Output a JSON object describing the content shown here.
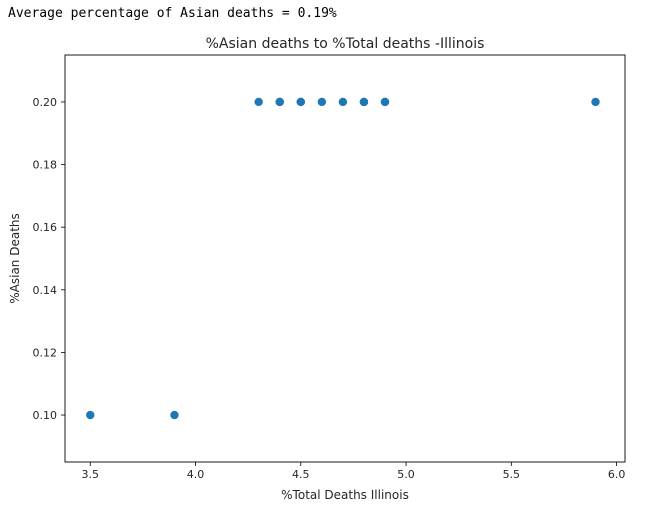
{
  "output_text": "Average percentage of Asian deaths = 0.19%",
  "chart_data": {
    "type": "scatter",
    "title": "%Asian deaths to %Total deaths -Illinois",
    "xlabel": "%Total Deaths Illinois",
    "ylabel": "%Asian Deaths",
    "xlim": [
      3.38,
      6.04
    ],
    "ylim": [
      0.085,
      0.215
    ],
    "xticks": [
      3.5,
      4.0,
      4.5,
      5.0,
      5.5,
      6.0
    ],
    "xtick_labels": [
      "3.5",
      "4.0",
      "4.5",
      "5.0",
      "5.5",
      "6.0"
    ],
    "yticks": [
      0.1,
      0.12,
      0.14,
      0.16,
      0.18,
      0.2
    ],
    "ytick_labels": [
      "0.10",
      "0.12",
      "0.14",
      "0.16",
      "0.18",
      "0.20"
    ],
    "grid": false,
    "marker_color": "#1f77b4",
    "points": [
      {
        "x": 3.5,
        "y": 0.1
      },
      {
        "x": 3.9,
        "y": 0.1
      },
      {
        "x": 4.3,
        "y": 0.2
      },
      {
        "x": 4.4,
        "y": 0.2
      },
      {
        "x": 4.4,
        "y": 0.2
      },
      {
        "x": 4.5,
        "y": 0.2
      },
      {
        "x": 4.5,
        "y": 0.2
      },
      {
        "x": 4.6,
        "y": 0.2
      },
      {
        "x": 4.7,
        "y": 0.2
      },
      {
        "x": 4.8,
        "y": 0.2
      },
      {
        "x": 4.8,
        "y": 0.2
      },
      {
        "x": 4.9,
        "y": 0.2
      },
      {
        "x": 4.9,
        "y": 0.2
      },
      {
        "x": 5.9,
        "y": 0.2
      }
    ]
  }
}
